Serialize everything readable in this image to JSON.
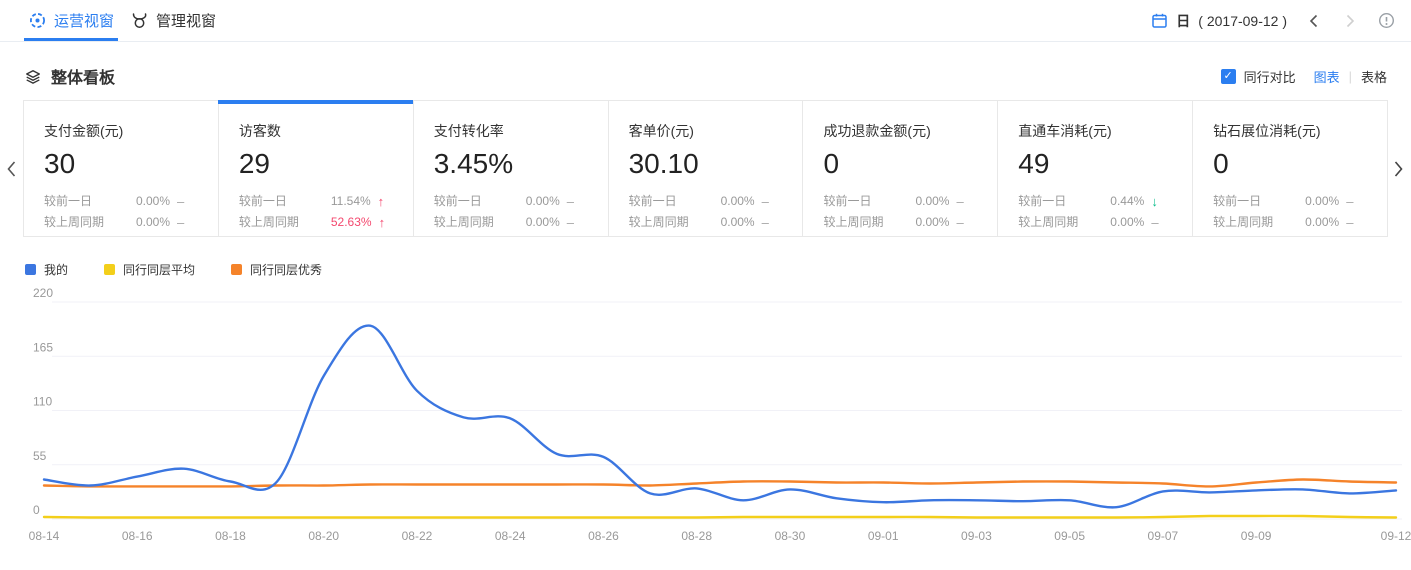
{
  "header": {
    "tabs": [
      {
        "label": "运营视窗",
        "active": true
      },
      {
        "label": "管理视窗",
        "active": false
      }
    ],
    "period_label": "日",
    "date_range": "( 2017-09-12 )"
  },
  "board": {
    "title": "整体看板",
    "compare_label": "同行对比",
    "compare_checked": true,
    "view_chart_label": "图表",
    "view_table_label": "表格"
  },
  "cards": [
    {
      "title": "支付金额(元)",
      "value": "30",
      "active": false,
      "rows": [
        {
          "label": "较前一日",
          "value": "0.00%",
          "trend": "flat",
          "highlight": false
        },
        {
          "label": "较上周同期",
          "value": "0.00%",
          "trend": "flat",
          "highlight": false
        }
      ]
    },
    {
      "title": "访客数",
      "value": "29",
      "active": true,
      "rows": [
        {
          "label": "较前一日",
          "value": "11.54%",
          "trend": "up",
          "highlight": false
        },
        {
          "label": "较上周同期",
          "value": "52.63%",
          "trend": "up",
          "highlight": true
        }
      ]
    },
    {
      "title": "支付转化率",
      "value": "3.45%",
      "active": false,
      "rows": [
        {
          "label": "较前一日",
          "value": "0.00%",
          "trend": "flat",
          "highlight": false
        },
        {
          "label": "较上周同期",
          "value": "0.00%",
          "trend": "flat",
          "highlight": false
        }
      ]
    },
    {
      "title": "客单价(元)",
      "value": "30.10",
      "active": false,
      "rows": [
        {
          "label": "较前一日",
          "value": "0.00%",
          "trend": "flat",
          "highlight": false
        },
        {
          "label": "较上周同期",
          "value": "0.00%",
          "trend": "flat",
          "highlight": false
        }
      ]
    },
    {
      "title": "成功退款金额(元)",
      "value": "0",
      "active": false,
      "rows": [
        {
          "label": "较前一日",
          "value": "0.00%",
          "trend": "flat",
          "highlight": false
        },
        {
          "label": "较上周同期",
          "value": "0.00%",
          "trend": "flat",
          "highlight": false
        }
      ]
    },
    {
      "title": "直通车消耗(元)",
      "value": "49",
      "active": false,
      "rows": [
        {
          "label": "较前一日",
          "value": "0.44%",
          "trend": "down",
          "highlight": false
        },
        {
          "label": "较上周同期",
          "value": "0.00%",
          "trend": "flat",
          "highlight": false
        }
      ]
    },
    {
      "title": "钻石展位消耗(元)",
      "value": "0",
      "active": false,
      "rows": [
        {
          "label": "较前一日",
          "value": "0.00%",
          "trend": "flat",
          "highlight": false
        },
        {
          "label": "较上周同期",
          "value": "0.00%",
          "trend": "flat",
          "highlight": false
        }
      ]
    }
  ],
  "colors": {
    "accent": "#2b7ef0",
    "up_red": "#f4486e",
    "down_green": "#0ebd8c",
    "grid": "#f1f1f7",
    "axis_text": "#999999"
  },
  "trend_glyphs": {
    "up": "↑",
    "down": "↓",
    "flat": "–"
  },
  "chart_data": {
    "type": "line",
    "title": "",
    "xlabel": "",
    "ylabel": "",
    "x": [
      "08-14",
      "08-15",
      "08-16",
      "08-17",
      "08-18",
      "08-19",
      "08-20",
      "08-21",
      "08-22",
      "08-23",
      "08-24",
      "08-25",
      "08-26",
      "08-27",
      "08-28",
      "08-29",
      "08-30",
      "08-31",
      "09-01",
      "09-02",
      "09-03",
      "09-04",
      "09-05",
      "09-06",
      "09-07",
      "09-08",
      "09-09",
      "09-10",
      "09-11",
      "09-12"
    ],
    "x_tick_labels": [
      "08-14",
      "08-16",
      "08-18",
      "08-20",
      "08-22",
      "08-24",
      "08-26",
      "08-28",
      "08-30",
      "09-01",
      "09-03",
      "09-05",
      "09-07",
      "09-09",
      "09-12"
    ],
    "series": [
      {
        "name": "我的",
        "color": "#3b76e0",
        "values": [
          40,
          34,
          43,
          51,
          38,
          38,
          145,
          196,
          130,
          103,
          102,
          66,
          63,
          26,
          31,
          19,
          30,
          21,
          17,
          19,
          19,
          18,
          19,
          12,
          28,
          27,
          29,
          30,
          26,
          29
        ]
      },
      {
        "name": "同行同层平均",
        "color": "#f3cf1a",
        "values": [
          2,
          1.5,
          1.5,
          1.5,
          1.5,
          1.5,
          1.5,
          1.5,
          1.5,
          1.5,
          1.5,
          1.5,
          1.5,
          1.5,
          1.5,
          2,
          2,
          2,
          2,
          2,
          1.5,
          1.5,
          1.5,
          1.5,
          2,
          3,
          3,
          3,
          2,
          1.5
        ]
      },
      {
        "name": "同行同层优秀",
        "color": "#f5832a",
        "values": [
          34,
          33,
          33,
          33,
          33,
          34,
          34,
          35,
          35,
          35,
          35,
          35,
          35,
          34,
          36,
          38,
          38,
          37,
          37,
          36,
          37,
          38,
          38,
          37,
          36,
          33,
          37,
          40,
          38,
          37
        ]
      }
    ],
    "ylim": [
      0,
      220
    ],
    "yticks": [
      0,
      55,
      110,
      165,
      220
    ],
    "grid": true,
    "legend_position": "top-left"
  }
}
